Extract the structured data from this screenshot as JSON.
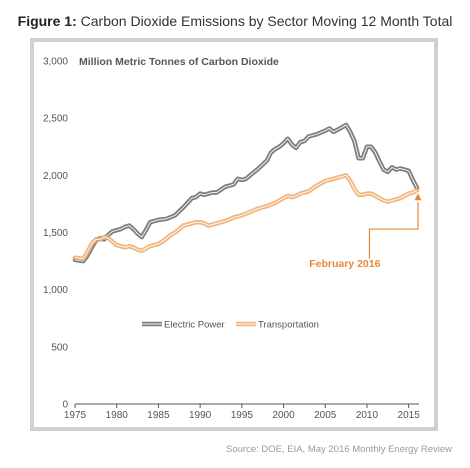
{
  "figure": {
    "label": "Figure 1:",
    "title": "Carbon Dioxide Emissions by Sector Moving 12 Month Total",
    "source": "Source: DOE, EIA, May 2016 Monthly Energy Review"
  },
  "colors": {
    "electric_power": "#666666",
    "transportation": "#f0a868",
    "annotation": "#e6893a",
    "frame": "#d0d0d0"
  },
  "chart_data": {
    "type": "line",
    "title": "",
    "ylabel": "Million Metric Tonnes of Carbon Dioxide",
    "xlabel": "",
    "xlim": [
      1975,
      2016
    ],
    "ylim": [
      0,
      3000
    ],
    "x_ticks": [
      1975,
      1980,
      1985,
      1990,
      1995,
      2000,
      2005,
      2010,
      2015
    ],
    "x_tick_labels": [
      "1975",
      "1980",
      "1985",
      "1990",
      "1995",
      "2000",
      "2005",
      "2010",
      "2015"
    ],
    "y_ticks": [
      0,
      500,
      1000,
      1500,
      2000,
      2500,
      3000
    ],
    "y_tick_labels": [
      "0",
      "500",
      "1,000",
      "1,500",
      "2,000",
      "2,500",
      "3,000"
    ],
    "grid": false,
    "legend_position": "center",
    "series": [
      {
        "name": "Electric Power",
        "x": [
          1975.0,
          1976.0,
          1976.5,
          1977.0,
          1977.5,
          1978.0,
          1978.5,
          1979.0,
          1979.5,
          1980.0,
          1980.5,
          1981.0,
          1981.5,
          1982.0,
          1982.5,
          1983.0,
          1983.5,
          1984.0,
          1984.5,
          1985.0,
          1986.0,
          1987.0,
          1988.0,
          1988.5,
          1989.0,
          1989.5,
          1990.0,
          1990.5,
          1991.0,
          1991.5,
          1992.0,
          1993.0,
          1994.0,
          1994.5,
          1995.0,
          1995.5,
          1996.0,
          1997.0,
          1998.0,
          1998.5,
          1999.0,
          1999.5,
          2000.0,
          2000.5,
          2001.0,
          2001.5,
          2002.0,
          2002.5,
          2003.0,
          2004.0,
          2005.0,
          2005.5,
          2006.0,
          2006.5,
          2007.0,
          2007.5,
          2008.0,
          2008.5,
          2009.0,
          2009.5,
          2010.0,
          2010.5,
          2011.0,
          2011.5,
          2012.0,
          2012.5,
          2013.0,
          2013.5,
          2014.0,
          2014.5,
          2015.0,
          2015.5,
          2016.0
        ],
        "values": [
          1260,
          1250,
          1300,
          1370,
          1430,
          1450,
          1440,
          1480,
          1510,
          1520,
          1530,
          1550,
          1560,
          1530,
          1490,
          1460,
          1520,
          1590,
          1600,
          1610,
          1620,
          1650,
          1720,
          1760,
          1800,
          1810,
          1840,
          1830,
          1840,
          1850,
          1850,
          1900,
          1920,
          1970,
          1960,
          1970,
          2000,
          2060,
          2130,
          2200,
          2230,
          2250,
          2280,
          2320,
          2270,
          2240,
          2290,
          2300,
          2340,
          2360,
          2390,
          2410,
          2380,
          2400,
          2420,
          2440,
          2380,
          2300,
          2150,
          2150,
          2250,
          2250,
          2200,
          2120,
          2050,
          2030,
          2070,
          2050,
          2060,
          2050,
          2040,
          1960,
          1890
        ]
      },
      {
        "name": "Transportation",
        "x": [
          1975.0,
          1976.0,
          1976.5,
          1977.0,
          1977.5,
          1978.0,
          1978.5,
          1979.0,
          1979.5,
          1980.0,
          1980.5,
          1981.0,
          1981.5,
          1982.0,
          1982.5,
          1983.0,
          1983.5,
          1984.0,
          1984.5,
          1985.0,
          1985.5,
          1986.0,
          1986.5,
          1987.0,
          1987.5,
          1988.0,
          1988.5,
          1989.0,
          1989.5,
          1990.0,
          1990.5,
          1991.0,
          1991.5,
          1992.0,
          1993.0,
          1994.0,
          1995.0,
          1996.0,
          1997.0,
          1998.0,
          1999.0,
          2000.0,
          2000.5,
          2001.0,
          2001.5,
          2002.0,
          2003.0,
          2004.0,
          2005.0,
          2005.5,
          2006.0,
          2006.5,
          2007.0,
          2007.5,
          2008.0,
          2008.5,
          2009.0,
          2009.5,
          2010.0,
          2010.5,
          2011.0,
          2011.5,
          2012.0,
          2012.5,
          2013.0,
          2013.5,
          2014.0,
          2014.5,
          2015.0,
          2015.5,
          2016.0
        ],
        "values": [
          1280,
          1270,
          1330,
          1400,
          1440,
          1440,
          1460,
          1450,
          1420,
          1390,
          1380,
          1370,
          1380,
          1370,
          1350,
          1340,
          1360,
          1380,
          1390,
          1400,
          1420,
          1450,
          1480,
          1500,
          1530,
          1560,
          1570,
          1580,
          1590,
          1590,
          1580,
          1560,
          1570,
          1580,
          1600,
          1630,
          1650,
          1680,
          1710,
          1730,
          1760,
          1800,
          1820,
          1810,
          1820,
          1840,
          1860,
          1910,
          1950,
          1960,
          1970,
          1980,
          1990,
          2000,
          1950,
          1880,
          1830,
          1830,
          1840,
          1840,
          1820,
          1800,
          1780,
          1770,
          1780,
          1790,
          1800,
          1820,
          1840,
          1850,
          1870
        ]
      }
    ],
    "annotations": [
      {
        "text": "February 2016",
        "x": 2016,
        "y": 1870
      }
    ]
  }
}
